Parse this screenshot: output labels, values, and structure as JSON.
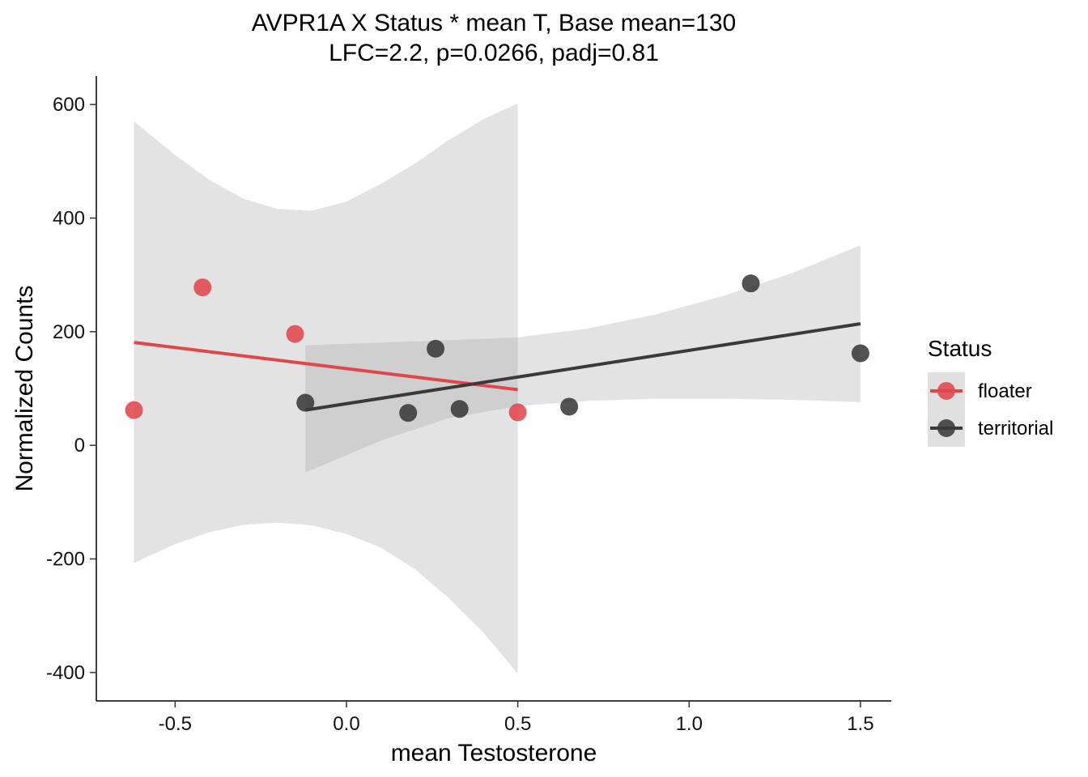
{
  "chart_data": {
    "type": "scatter",
    "title": "AVPR1A X Status * mean T, Base mean=130",
    "subtitle": "LFC=2.2, p=0.0266, padj=0.81",
    "xlabel": "mean Testosterone",
    "ylabel": "Normalized Counts",
    "xlim": [
      -0.73,
      1.59
    ],
    "ylim": [
      -450,
      650
    ],
    "x_ticks": [
      -0.5,
      0.0,
      0.5,
      1.0,
      1.5
    ],
    "x_tick_labels": [
      "-0.5",
      "0.0",
      "0.5",
      "1.0",
      "1.5"
    ],
    "y_ticks": [
      -400,
      -200,
      0,
      200,
      400,
      600
    ],
    "y_tick_labels": [
      "-400",
      "-200",
      "0",
      "200",
      "400",
      "600"
    ],
    "grid": false,
    "legend": {
      "title": "Status",
      "position": "right"
    },
    "series": [
      {
        "name": "floater",
        "color": "#E0474C",
        "points": [
          {
            "x": -0.62,
            "y": 62
          },
          {
            "x": -0.42,
            "y": 278
          },
          {
            "x": -0.15,
            "y": 196
          },
          {
            "x": 0.5,
            "y": 58
          }
        ],
        "fit": {
          "x": [
            -0.62,
            0.5
          ],
          "y": [
            181,
            98
          ]
        },
        "ci": [
          {
            "x": -0.62,
            "lo": -207,
            "hi": 570
          },
          {
            "x": -0.5,
            "lo": -174,
            "hi": 511
          },
          {
            "x": -0.4,
            "lo": -153,
            "hi": 467
          },
          {
            "x": -0.3,
            "lo": -140,
            "hi": 434
          },
          {
            "x": -0.2,
            "lo": -136,
            "hi": 416
          },
          {
            "x": -0.1,
            "lo": -141,
            "hi": 413
          },
          {
            "x": 0.0,
            "lo": -156,
            "hi": 429
          },
          {
            "x": 0.1,
            "lo": -180,
            "hi": 460
          },
          {
            "x": 0.2,
            "lo": -218,
            "hi": 496
          },
          {
            "x": 0.3,
            "lo": -270,
            "hi": 538
          },
          {
            "x": 0.4,
            "lo": -330,
            "hi": 574
          },
          {
            "x": 0.5,
            "lo": -402,
            "hi": 602
          }
        ]
      },
      {
        "name": "territorial",
        "color": "#3A3A3A",
        "points": [
          {
            "x": -0.12,
            "y": 75
          },
          {
            "x": 0.18,
            "y": 57
          },
          {
            "x": 0.26,
            "y": 170
          },
          {
            "x": 0.33,
            "y": 64
          },
          {
            "x": 0.65,
            "y": 68
          },
          {
            "x": 1.18,
            "y": 285
          },
          {
            "x": 1.5,
            "y": 162
          }
        ],
        "fit": {
          "x": [
            -0.12,
            1.5
          ],
          "y": [
            62,
            214
          ]
        },
        "ci": [
          {
            "x": -0.12,
            "lo": -48,
            "hi": 176
          },
          {
            "x": 0.1,
            "lo": 8,
            "hi": 181
          },
          {
            "x": 0.3,
            "lo": 48,
            "hi": 185
          },
          {
            "x": 0.5,
            "lo": 69,
            "hi": 190
          },
          {
            "x": 0.7,
            "lo": 78,
            "hi": 205
          },
          {
            "x": 0.9,
            "lo": 82,
            "hi": 230
          },
          {
            "x": 1.1,
            "lo": 82,
            "hi": 263
          },
          {
            "x": 1.3,
            "lo": 80,
            "hi": 303
          },
          {
            "x": 1.5,
            "lo": 76,
            "hi": 352
          }
        ]
      }
    ]
  }
}
